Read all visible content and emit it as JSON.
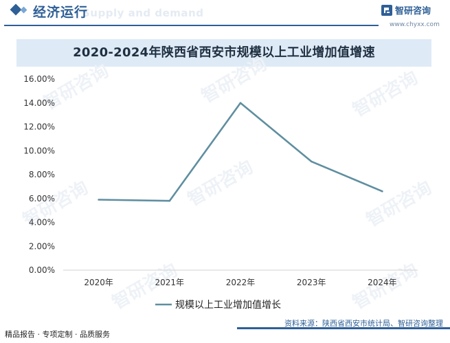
{
  "header": {
    "title": "经济运行",
    "watermark": "Supply and demand",
    "logo_text": "智研咨询",
    "logo_url": "www.chyxx.com"
  },
  "chart_data": {
    "type": "line",
    "title": "2020-2024年陕西省西安市规模以上工业增加值增速",
    "categories": [
      "2020年",
      "2021年",
      "2022年",
      "2023年",
      "2024年"
    ],
    "series": [
      {
        "name": "规模以上工业增加值增长",
        "values": [
          5.9,
          5.8,
          14.0,
          9.1,
          6.6
        ],
        "color": "#5f8ea0"
      }
    ],
    "y_ticks": [
      "16.00%",
      "14.00%",
      "12.00%",
      "10.00%",
      "8.00%",
      "6.00%",
      "4.00%",
      "2.00%",
      "0.00%"
    ],
    "ylim": [
      0,
      16
    ],
    "grid": false,
    "legend_position": "bottom"
  },
  "watermark": {
    "text": "智研咨询"
  },
  "footer": {
    "left": "精品报告 · 专项定制 · 品质服务",
    "source": "资料来源：陕西省西安市统计局、智研咨询整理"
  }
}
